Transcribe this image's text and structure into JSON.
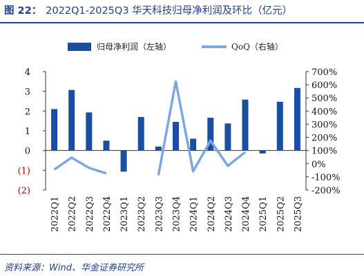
{
  "header": {
    "figure_label": "图 22：",
    "title_text": "2022Q1-2025Q3 华天科技归母净利润及环比（亿元）"
  },
  "footer": {
    "source": "资料来源：Wind、华金证券研究所"
  },
  "chart_data": {
    "type": "bar+line",
    "categories": [
      "2022Q1",
      "2022Q2",
      "2022Q3",
      "2022Q4",
      "2023Q1",
      "2023Q2",
      "2023Q3",
      "2023Q4",
      "2024Q1",
      "2024Q2",
      "2024Q3",
      "2024Q4",
      "2025Q1",
      "2025Q2",
      "2025Q3"
    ],
    "series": [
      {
        "name": "归母净利润（左轴）",
        "kind": "bar",
        "axis": "left",
        "color": "#1a4ea0",
        "values": [
          2.1,
          3.07,
          1.93,
          0.5,
          -1.07,
          1.7,
          0.2,
          1.45,
          0.6,
          1.66,
          1.37,
          2.58,
          -0.15,
          2.47,
          3.17
        ]
      },
      {
        "name": "QoQ（右轴）",
        "kind": "line",
        "axis": "right",
        "color": "#7ea6e0",
        "values": [
          -45,
          46,
          -32,
          -74,
          null,
          null,
          -88,
          625,
          -58,
          175,
          -17,
          88,
          null,
          null,
          null
        ]
      }
    ],
    "y_left": {
      "ylim": [
        -2,
        4
      ],
      "ticks": [
        4,
        3,
        2,
        1,
        0,
        -1,
        -2
      ],
      "tick_labels": [
        "4",
        "3",
        "2",
        "1",
        "0",
        "(1)",
        "(2)"
      ]
    },
    "y_right": {
      "ylim": [
        -200,
        700
      ],
      "ticks": [
        700,
        600,
        500,
        400,
        300,
        200,
        100,
        0,
        -100,
        -200
      ],
      "tick_labels": [
        "700%",
        "600%",
        "500%",
        "400%",
        "300%",
        "200%",
        "100%",
        "0%",
        "-100%",
        "-200%"
      ]
    },
    "legend_position": "top"
  }
}
